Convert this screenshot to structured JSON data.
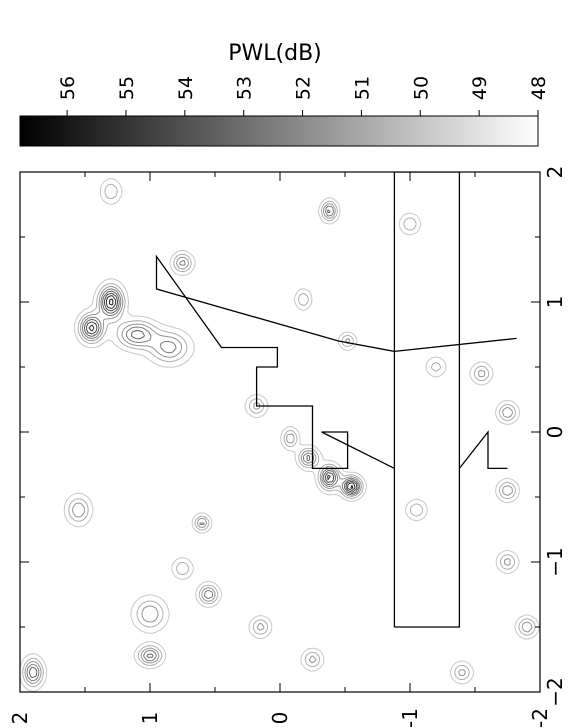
{
  "chart_data": {
    "type": "heatmap",
    "title": "",
    "colorbar": {
      "label": "PWL(dB)",
      "ticks": [
        "56",
        "55",
        "54",
        "53",
        "52",
        "51",
        "50",
        "49",
        "48"
      ],
      "range": [
        48,
        56.8
      ]
    },
    "x_axis": {
      "label": "",
      "ticks": [
        "−2",
        "−1",
        "0",
        "1",
        "2"
      ],
      "range": [
        -2,
        2
      ]
    },
    "y_axis": {
      "label": "",
      "ticks": [
        "2",
        "1",
        "0",
        "-1",
        "-2"
      ],
      "range": [
        -2,
        2
      ]
    },
    "grid": false,
    "contour_levels_dB": [
      48.5,
      49.5,
      50.5,
      51.5,
      52.5,
      53.5,
      54.5,
      55.5
    ],
    "sources": [
      {
        "x": 1.0,
        "y": 1.3,
        "peak": 56.0,
        "sx": 0.08,
        "sy": 0.06
      },
      {
        "x": 0.8,
        "y": 1.45,
        "peak": 55.0,
        "sx": 0.07,
        "sy": 0.06
      },
      {
        "x": 0.75,
        "y": 1.1,
        "peak": 53.0,
        "sx": 0.07,
        "sy": 0.1
      },
      {
        "x": 0.65,
        "y": 0.85,
        "peak": 52.0,
        "sx": 0.08,
        "sy": 0.1
      },
      {
        "x": 1.3,
        "y": 0.75,
        "peak": 52.0,
        "sx": 0.05,
        "sy": 0.05
      },
      {
        "x": -0.42,
        "y": -0.55,
        "peak": 56.0,
        "sx": 0.05,
        "sy": 0.05
      },
      {
        "x": -0.35,
        "y": -0.38,
        "peak": 55.0,
        "sx": 0.06,
        "sy": 0.05
      },
      {
        "x": -0.2,
        "y": -0.22,
        "peak": 53.0,
        "sx": 0.05,
        "sy": 0.05
      },
      {
        "x": -0.05,
        "y": -0.08,
        "peak": 51.5,
        "sx": 0.05,
        "sy": 0.04
      },
      {
        "x": 1.7,
        "y": -0.38,
        "peak": 53.0,
        "sx": 0.05,
        "sy": 0.04
      },
      {
        "x": 0.7,
        "y": -0.52,
        "peak": 51.0,
        "sx": 0.04,
        "sy": 0.04
      },
      {
        "x": -1.4,
        "y": 1.0,
        "peak": 51.5,
        "sx": 0.08,
        "sy": 0.08
      },
      {
        "x": -1.72,
        "y": 1.0,
        "peak": 53.0,
        "sx": 0.05,
        "sy": 0.06
      },
      {
        "x": -1.85,
        "y": 1.9,
        "peak": 53.5,
        "sx": 0.07,
        "sy": 0.05
      },
      {
        "x": -0.6,
        "y": 1.55,
        "peak": 51.5,
        "sx": 0.07,
        "sy": 0.06
      },
      {
        "x": -0.7,
        "y": 0.6,
        "peak": 52.0,
        "sx": 0.04,
        "sy": 0.04
      },
      {
        "x": -1.25,
        "y": 0.55,
        "peak": 52.5,
        "sx": 0.05,
        "sy": 0.05
      },
      {
        "x": -1.5,
        "y": 0.15,
        "peak": 51.0,
        "sx": 0.05,
        "sy": 0.05
      },
      {
        "x": 0.2,
        "y": 0.18,
        "peak": 51.0,
        "sx": 0.05,
        "sy": 0.05
      },
      {
        "x": 1.02,
        "y": -0.18,
        "peak": 50.5,
        "sx": 0.05,
        "sy": 0.04
      },
      {
        "x": 1.6,
        "y": -1.0,
        "peak": 50.5,
        "sx": 0.05,
        "sy": 0.05
      },
      {
        "x": -1.75,
        "y": -0.25,
        "peak": 51.0,
        "sx": 0.05,
        "sy": 0.05
      },
      {
        "x": -1.5,
        "y": -1.9,
        "peak": 51.5,
        "sx": 0.05,
        "sy": 0.05
      },
      {
        "x": -1.85,
        "y": -1.4,
        "peak": 51.0,
        "sx": 0.05,
        "sy": 0.05
      },
      {
        "x": 0.15,
        "y": -1.75,
        "peak": 51.5,
        "sx": 0.05,
        "sy": 0.05
      },
      {
        "x": -0.45,
        "y": -1.75,
        "peak": 51.5,
        "sx": 0.05,
        "sy": 0.05
      },
      {
        "x": -1.0,
        "y": -1.75,
        "peak": 51.0,
        "sx": 0.05,
        "sy": 0.05
      },
      {
        "x": -0.6,
        "y": -1.05,
        "peak": 50.5,
        "sx": 0.05,
        "sy": 0.05
      },
      {
        "x": 0.45,
        "y": -1.55,
        "peak": 51.0,
        "sx": 0.05,
        "sy": 0.05
      },
      {
        "x": -1.05,
        "y": 0.75,
        "peak": 50.5,
        "sx": 0.05,
        "sy": 0.05
      },
      {
        "x": 0.5,
        "y": -1.2,
        "peak": 50.0,
        "sx": 0.05,
        "sy": 0.05
      },
      {
        "x": 1.85,
        "y": 1.3,
        "peak": 50.5,
        "sx": 0.06,
        "sy": 0.05
      }
    ],
    "aircraft_outline": [
      [
        -1.5,
        -0.88
      ],
      [
        -1.5,
        -1.38
      ],
      [
        2.0,
        -1.38
      ],
      [
        2.0,
        -0.88
      ],
      [
        0.62,
        -0.88
      ],
      [
        0.72,
        -1.82
      ],
      [
        0.62,
        -1.82
      ],
      [
        0.62,
        -1.38
      ],
      [
        -0.28,
        -1.38
      ],
      [
        0.0,
        -1.6
      ],
      [
        -0.28,
        -1.6
      ],
      [
        -0.28,
        -1.75
      ],
      [
        -0.28,
        -1.38
      ],
      [
        -0.28,
        -1.38
      ],
      [
        -0.28,
        -0.88
      ],
      [
        0.0,
        -0.32
      ],
      [
        -0.28,
        -0.52
      ],
      [
        -0.28,
        -0.52
      ],
      [
        0.0,
        -0.32
      ],
      [
        0.2,
        -0.02
      ],
      [
        0.2,
        0.18
      ],
      [
        0.5,
        0.18
      ],
      [
        0.5,
        0.02
      ],
      [
        0.65,
        0.02
      ],
      [
        0.65,
        0.45
      ],
      [
        1.35,
        0.95
      ],
      [
        1.1,
        0.95
      ],
      [
        0.7,
        0.85
      ],
      [
        0.72,
        -0.45
      ],
      [
        0.72,
        -0.45
      ],
      [
        0.62,
        -0.88
      ]
    ]
  }
}
